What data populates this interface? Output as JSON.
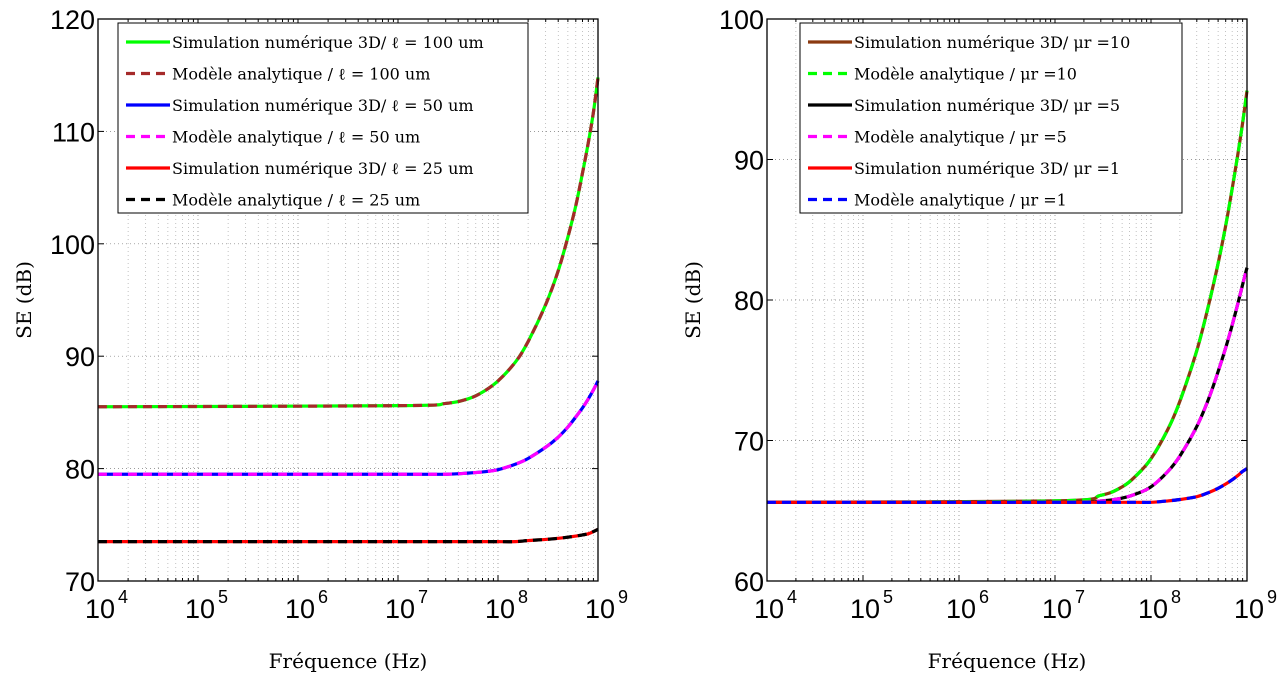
{
  "chart_data": [
    {
      "type": "line",
      "xlabel": "Fréquence (Hz)",
      "ylabel": "SE (dB)",
      "xscale": "log",
      "xlim": [
        10000,
        1000000000
      ],
      "ylim": [
        70,
        120
      ],
      "xticks": [
        10000,
        100000,
        1000000,
        10000000,
        100000000,
        1000000000
      ],
      "xtick_labels": [
        {
          "base": "10",
          "exp": "4"
        },
        {
          "base": "10",
          "exp": "5"
        },
        {
          "base": "10",
          "exp": "6"
        },
        {
          "base": "10",
          "exp": "7"
        },
        {
          "base": "10",
          "exp": "8"
        },
        {
          "base": "10",
          "exp": "9"
        }
      ],
      "yticks": [
        "70",
        "80",
        "90",
        "100",
        "110",
        "120"
      ],
      "grid": true,
      "legend_position": "top-right",
      "x": [
        10000,
        10000000,
        30000000,
        50000000,
        70000000,
        100000000,
        150000000,
        200000000,
        300000000,
        400000000,
        500000000,
        600000000,
        700000000,
        800000000,
        900000000,
        1000000000
      ],
      "series": [
        {
          "name": "Simulation numérique 3D/ ℓ = 100 um",
          "color": "#00ff00",
          "dash": "solid",
          "values": [
            85.5,
            85.6,
            85.8,
            86.2,
            86.8,
            87.8,
            89.5,
            91.3,
            94.6,
            97.6,
            100.6,
            103.4,
            106.3,
            109.0,
            111.7,
            114.8
          ]
        },
        {
          "name": "Modèle analytique / ℓ = 100 um",
          "color": "#a52a2a",
          "dash": "dashed",
          "values": [
            85.5,
            85.6,
            85.8,
            86.2,
            86.8,
            87.8,
            89.5,
            91.3,
            94.6,
            97.6,
            100.6,
            103.4,
            106.3,
            109.0,
            111.7,
            114.8
          ]
        },
        {
          "name": "Simulation numérique 3D/ ℓ = 50 um",
          "color": "#0000ff",
          "dash": "solid",
          "values": [
            79.5,
            79.5,
            79.5,
            79.6,
            79.7,
            79.9,
            80.4,
            80.9,
            81.9,
            82.8,
            83.7,
            84.6,
            85.4,
            86.2,
            87.0,
            87.8
          ]
        },
        {
          "name": "Modèle analytique / ℓ = 50 um",
          "color": "#ff00ff",
          "dash": "dashed",
          "values": [
            79.5,
            79.5,
            79.5,
            79.6,
            79.7,
            79.9,
            80.4,
            80.9,
            81.9,
            82.8,
            83.7,
            84.6,
            85.4,
            86.2,
            87.0,
            87.8
          ]
        },
        {
          "name": "Simulation numérique 3D/ ℓ = 25 um",
          "color": "#ff0000",
          "dash": "solid",
          "values": [
            73.5,
            73.5,
            73.5,
            73.5,
            73.5,
            73.5,
            73.5,
            73.6,
            73.7,
            73.8,
            73.9,
            74.0,
            74.1,
            74.2,
            74.4,
            74.6
          ]
        },
        {
          "name": "Modèle analytique / ℓ = 25 um",
          "color": "#000000",
          "dash": "dashed",
          "values": [
            73.5,
            73.5,
            73.5,
            73.5,
            73.5,
            73.5,
            73.5,
            73.6,
            73.7,
            73.8,
            73.9,
            74.0,
            74.1,
            74.2,
            74.4,
            74.6
          ]
        }
      ]
    },
    {
      "type": "line",
      "xlabel": "Fréquence (Hz)",
      "ylabel": "SE (dB)",
      "xscale": "log",
      "xlim": [
        10000,
        1000000000
      ],
      "ylim": [
        60,
        100
      ],
      "xticks": [
        10000,
        100000,
        1000000,
        10000000,
        100000000,
        1000000000
      ],
      "xtick_labels": [
        {
          "base": "10",
          "exp": "4"
        },
        {
          "base": "10",
          "exp": "5"
        },
        {
          "base": "10",
          "exp": "6"
        },
        {
          "base": "10",
          "exp": "7"
        },
        {
          "base": "10",
          "exp": "8"
        },
        {
          "base": "10",
          "exp": "9"
        }
      ],
      "yticks": [
        "60",
        "70",
        "80",
        "90",
        "100"
      ],
      "grid": true,
      "legend_position": "top-right",
      "x": [
        10000,
        10000000,
        30000000,
        50000000,
        70000000,
        100000000,
        150000000,
        200000000,
        300000000,
        400000000,
        500000000,
        600000000,
        700000000,
        800000000,
        900000000,
        1000000000
      ],
      "series": [
        {
          "name": "Simulation numérique 3D/ μr =10",
          "color": "#8b3a10",
          "dash": "solid",
          "values": [
            65.6,
            65.7,
            66.1,
            66.7,
            67.5,
            68.7,
            70.8,
            72.8,
            76.4,
            79.7,
            82.6,
            85.3,
            87.9,
            90.3,
            92.6,
            94.9
          ]
        },
        {
          "name": "Modèle analytique / μr =10",
          "color": "#00ff00",
          "dash": "dashed",
          "values": [
            65.6,
            65.7,
            66.1,
            66.7,
            67.5,
            68.7,
            70.8,
            72.8,
            76.4,
            79.7,
            82.6,
            85.3,
            87.9,
            90.3,
            92.6,
            94.9
          ]
        },
        {
          "name": "Simulation numérique 3D/ μr =5",
          "color": "#000000",
          "dash": "solid",
          "values": [
            65.6,
            65.6,
            65.7,
            65.9,
            66.2,
            66.7,
            67.8,
            68.9,
            71.0,
            73.0,
            74.9,
            76.6,
            78.2,
            79.7,
            81.1,
            82.3
          ]
        },
        {
          "name": "Modèle analytique / μr =5",
          "color": "#ff00ff",
          "dash": "dashed",
          "values": [
            65.6,
            65.6,
            65.7,
            65.9,
            66.2,
            66.7,
            67.8,
            68.9,
            71.0,
            73.0,
            74.9,
            76.6,
            78.2,
            79.7,
            81.1,
            82.3
          ]
        },
        {
          "name": "Simulation numérique 3D/ μr =1",
          "color": "#ff0000",
          "dash": "solid",
          "values": [
            65.6,
            65.6,
            65.6,
            65.6,
            65.6,
            65.6,
            65.7,
            65.8,
            66.0,
            66.3,
            66.6,
            66.9,
            67.2,
            67.5,
            67.8,
            68.0
          ]
        },
        {
          "name": "Modèle analytique / μr =1",
          "color": "#0000ff",
          "dash": "dashed",
          "values": [
            65.6,
            65.6,
            65.6,
            65.6,
            65.6,
            65.6,
            65.7,
            65.8,
            66.0,
            66.3,
            66.6,
            66.9,
            67.2,
            67.5,
            67.8,
            68.0
          ]
        }
      ]
    }
  ]
}
